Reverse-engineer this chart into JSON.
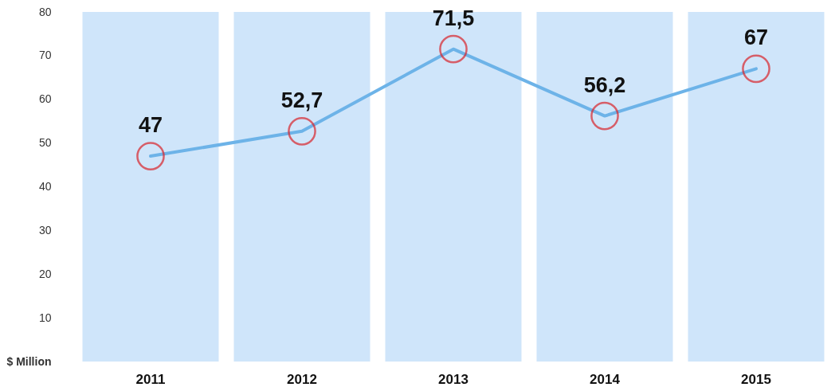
{
  "chart_data": {
    "type": "line",
    "categories": [
      "2011",
      "2012",
      "2013",
      "2014",
      "2015"
    ],
    "values": [
      47,
      52.7,
      71.5,
      56.2,
      67
    ],
    "value_labels": [
      "47",
      "52,7",
      "71,5",
      "56,2",
      "67"
    ],
    "color": "#6db3e8",
    "marker": "circle",
    "ylim": [
      0,
      80
    ],
    "yticks": [
      {
        "value": 0,
        "label": "$ Million"
      },
      10,
      20,
      30,
      40,
      50,
      60,
      70,
      80
    ],
    "bands": [
      {
        "axis": "x",
        "from": "2011",
        "to": "2011",
        "color": "#cfe5fa"
      },
      {
        "axis": "x",
        "from": "2012",
        "to": "2012",
        "color": "#cfe5fa"
      },
      {
        "axis": "x",
        "from": "2013",
        "to": "2013",
        "color": "#cfe5fa"
      },
      {
        "axis": "x",
        "from": "2014",
        "to": "2014",
        "color": "#cfe5fa"
      },
      {
        "axis": "x",
        "from": "2015",
        "to": "2015",
        "color": "#cfe5fa"
      }
    ]
  }
}
